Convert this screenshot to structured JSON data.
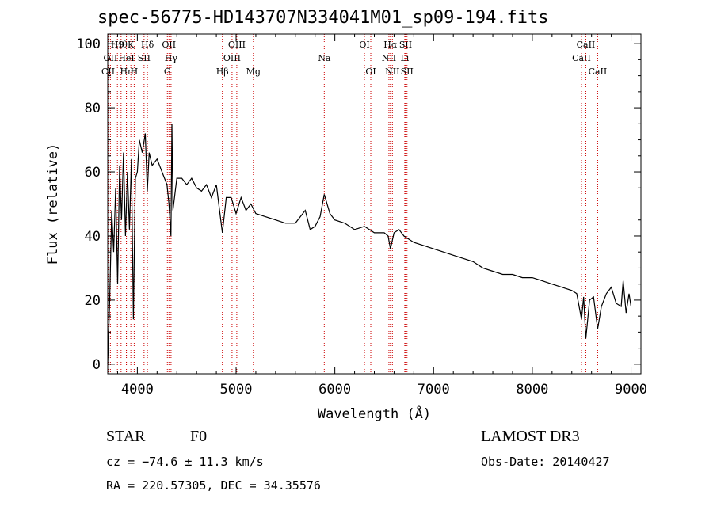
{
  "title": "spec-56775-HD143707N334041M01_sp09-194.fits",
  "info": {
    "class_label": "STAR",
    "subclass": "F0",
    "redshift": "cz = −74.6 ± 11.3 km/s",
    "coords": "RA = 220.57305, DEC =  34.35576",
    "survey": "LAMOST DR3",
    "obs_date": "Obs-Date: 20140427"
  },
  "chart_data": {
    "type": "line",
    "title": "spec-56775-HD143707N334041M01_sp09-194.fits",
    "xlabel": "Wavelength (Å)",
    "ylabel": "Flux (relative)",
    "xlim": [
      3700,
      9100
    ],
    "ylim": [
      -3,
      103
    ],
    "x_ticks": [
      4000,
      5000,
      6000,
      7000,
      8000,
      9000
    ],
    "y_ticks": [
      0,
      20,
      40,
      60,
      80,
      100
    ],
    "line_color": "#000000",
    "marker_color": "#cc0000",
    "series": [
      {
        "name": "flux",
        "x": [
          3700,
          3720,
          3740,
          3760,
          3780,
          3800,
          3820,
          3840,
          3860,
          3880,
          3900,
          3920,
          3940,
          3960,
          3970,
          3980,
          4000,
          4020,
          4050,
          4080,
          4101,
          4120,
          4150,
          4200,
          4250,
          4300,
          4320,
          4340,
          4350,
          4360,
          4400,
          4450,
          4500,
          4550,
          4600,
          4650,
          4700,
          4750,
          4800,
          4861,
          4900,
          4950,
          5000,
          5050,
          5100,
          5150,
          5200,
          5300,
          5400,
          5500,
          5600,
          5700,
          5750,
          5800,
          5850,
          5893,
          5950,
          6000,
          6100,
          6200,
          6300,
          6400,
          6500,
          6540,
          6563,
          6600,
          6650,
          6700,
          6800,
          6900,
          7000,
          7100,
          7200,
          7300,
          7400,
          7500,
          7600,
          7700,
          7800,
          7900,
          8000,
          8100,
          8200,
          8300,
          8400,
          8450,
          8498,
          8520,
          8542,
          8580,
          8620,
          8662,
          8700,
          8750,
          8800,
          8850,
          8900,
          8920,
          8950,
          8980,
          9000
        ],
        "y": [
          0,
          20,
          48,
          35,
          55,
          25,
          62,
          45,
          66,
          40,
          60,
          42,
          64,
          14,
          38,
          58,
          60,
          70,
          66,
          72,
          54,
          66,
          62,
          64,
          60,
          56,
          50,
          40,
          75,
          48,
          58,
          58,
          56,
          58,
          55,
          54,
          56,
          52,
          56,
          41,
          52,
          52,
          47,
          52,
          48,
          50,
          47,
          46,
          45,
          44,
          44,
          48,
          42,
          43,
          46,
          53,
          47,
          45,
          44,
          42,
          43,
          41,
          41,
          40,
          36,
          41,
          42,
          40,
          38,
          37,
          36,
          35,
          34,
          33,
          32,
          30,
          29,
          28,
          28,
          27,
          27,
          26,
          25,
          24,
          23,
          22,
          14,
          21,
          8,
          20,
          21,
          11,
          18,
          22,
          24,
          19,
          18,
          26,
          16,
          22,
          18
        ]
      }
    ],
    "line_markers": [
      {
        "wavelength": 3704,
        "label": "CII",
        "row": 2
      },
      {
        "wavelength": 3727,
        "label": "OII",
        "row": 1
      },
      {
        "wavelength": 3798,
        "label": "H9",
        "row": 0
      },
      {
        "wavelength": 3835,
        "label": "Hθ",
        "row": 0
      },
      {
        "wavelength": 3889,
        "label": "HeI",
        "row": 1
      },
      {
        "wavelength": 3889,
        "label": "Hη",
        "row": 2
      },
      {
        "wavelength": 3934,
        "label": "K",
        "row": 0
      },
      {
        "wavelength": 3968,
        "label": "H",
        "row": 2
      },
      {
        "wavelength": 4068,
        "label": "SII",
        "row": 1
      },
      {
        "wavelength": 4102,
        "label": "Hδ",
        "row": 0
      },
      {
        "wavelength": 4304,
        "label": "G",
        "row": 2
      },
      {
        "wavelength": 4320,
        "label": "OII",
        "row": 0
      },
      {
        "wavelength": 4341,
        "label": "Hγ",
        "row": 1
      },
      {
        "wavelength": 4861,
        "label": "Hβ",
        "row": 2
      },
      {
        "wavelength": 4959,
        "label": "OIII",
        "row": 1
      },
      {
        "wavelength": 5007,
        "label": "OIII",
        "row": 0
      },
      {
        "wavelength": 5175,
        "label": "Mg",
        "row": 2
      },
      {
        "wavelength": 5893,
        "label": "Na",
        "row": 1
      },
      {
        "wavelength": 6300,
        "label": "OI",
        "row": 0
      },
      {
        "wavelength": 6364,
        "label": "OI",
        "row": 2
      },
      {
        "wavelength": 6548,
        "label": "NII",
        "row": 1
      },
      {
        "wavelength": 6563,
        "label": "Hα",
        "row": 0
      },
      {
        "wavelength": 6583,
        "label": "NII",
        "row": 2
      },
      {
        "wavelength": 6708,
        "label": "Li",
        "row": 1
      },
      {
        "wavelength": 6717,
        "label": "SII",
        "row": 0
      },
      {
        "wavelength": 6731,
        "label": "SII",
        "row": 2
      },
      {
        "wavelength": 8498,
        "label": "CaII",
        "row": 1
      },
      {
        "wavelength": 8542,
        "label": "CaII",
        "row": 0
      },
      {
        "wavelength": 8662,
        "label": "CaII",
        "row": 2
      }
    ]
  }
}
